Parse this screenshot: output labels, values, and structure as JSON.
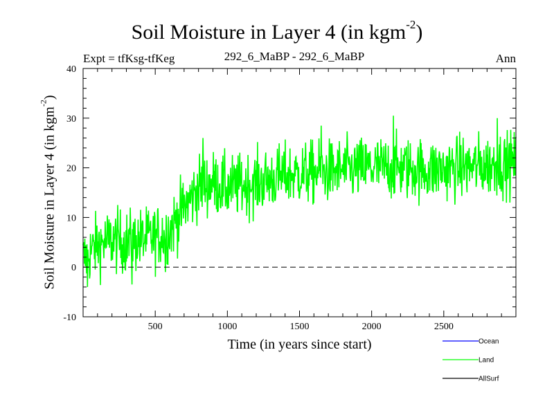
{
  "chart_data": {
    "type": "line",
    "title": "Soil Moisture in Layer 4 (in kgm",
    "title_exponent": "-2",
    "title_close": ")",
    "subtitle_left": "Expt = tfKsg-tfKeg",
    "subtitle_center": "292_6_MaBP - 292_6_MaBP",
    "subtitle_right": "Ann",
    "xlabel": "Time (in years since start)",
    "ylabel": "Soil Moisture in Layer 4 (in kgm",
    "ylabel_exponent": "-2",
    "ylabel_close": ")",
    "xlim": [
      0,
      3000
    ],
    "ylim": [
      -10,
      40
    ],
    "xticks": [
      500,
      1000,
      1500,
      2000,
      2500
    ],
    "yticks": [
      -10,
      0,
      10,
      20,
      30,
      40
    ],
    "reference_line": 0,
    "series": [
      {
        "name": "Ocean",
        "color": "#0000ff",
        "values": []
      },
      {
        "name": "Land",
        "color": "#00ff00",
        "trend_x": [
          0,
          100,
          200,
          300,
          400,
          500,
          600,
          700,
          800,
          900,
          1000,
          1200,
          1400,
          1600,
          1800,
          2000,
          2200,
          2400,
          2600,
          2800,
          3000
        ],
        "trend_y": [
          1.5,
          4.5,
          5.5,
          5.0,
          5.5,
          6.0,
          7.5,
          12.0,
          16.0,
          17.0,
          16.0,
          17.0,
          18.5,
          19.0,
          19.5,
          20.0,
          20.0,
          19.5,
          20.0,
          20.5,
          21.0
        ],
        "noise_amplitude": 3.2,
        "peaks": [
          [
            830,
            26
          ],
          [
            1650,
            28.5
          ],
          [
            2150,
            30.5
          ],
          [
            2870,
            30
          ],
          [
            340,
            -3.5
          ],
          [
            570,
            -1
          ],
          [
            30,
            -4
          ]
        ]
      },
      {
        "name": "AllSurf",
        "color": "#000000",
        "values": []
      }
    ]
  }
}
